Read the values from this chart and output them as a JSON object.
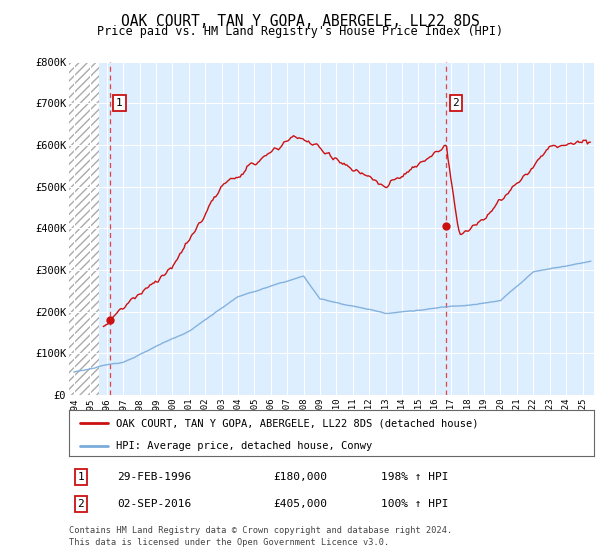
{
  "title": "OAK COURT, TAN Y GOPA, ABERGELE, LL22 8DS",
  "subtitle": "Price paid vs. HM Land Registry's House Price Index (HPI)",
  "ylabel_ticks": [
    "£0",
    "£100K",
    "£200K",
    "£300K",
    "£400K",
    "£500K",
    "£600K",
    "£700K",
    "£800K"
  ],
  "ytick_values": [
    0,
    100000,
    200000,
    300000,
    400000,
    500000,
    600000,
    700000,
    800000
  ],
  "ylim": [
    0,
    800000
  ],
  "xlim_start": 1993.7,
  "xlim_end": 2025.7,
  "hpi_color": "#7aabdb",
  "property_color": "#cc1111",
  "dashed_line_color": "#dd3333",
  "marker1_x": 1996.17,
  "marker1_y": 180000,
  "marker2_x": 2016.67,
  "marker2_y": 405000,
  "legend_label1": "OAK COURT, TAN Y GOPA, ABERGELE, LL22 8DS (detached house)",
  "legend_label2": "HPI: Average price, detached house, Conwy",
  "note1_label": "1",
  "note1_date": "29-FEB-1996",
  "note1_price": "£180,000",
  "note1_hpi": "198% ↑ HPI",
  "note2_label": "2",
  "note2_date": "02-SEP-2016",
  "note2_price": "£405,000",
  "note2_hpi": "100% ↑ HPI",
  "footnote1": "Contains HM Land Registry data © Crown copyright and database right 2024.",
  "footnote2": "This data is licensed under the Open Government Licence v3.0.",
  "background_plot": "#ddeeff",
  "xtick_years": [
    1994,
    1995,
    1996,
    1997,
    1998,
    1999,
    2000,
    2001,
    2002,
    2003,
    2004,
    2005,
    2006,
    2007,
    2008,
    2009,
    2010,
    2011,
    2012,
    2013,
    2014,
    2015,
    2016,
    2017,
    2018,
    2019,
    2020,
    2021,
    2022,
    2023,
    2024,
    2025
  ],
  "hatch_end": 1995.5
}
